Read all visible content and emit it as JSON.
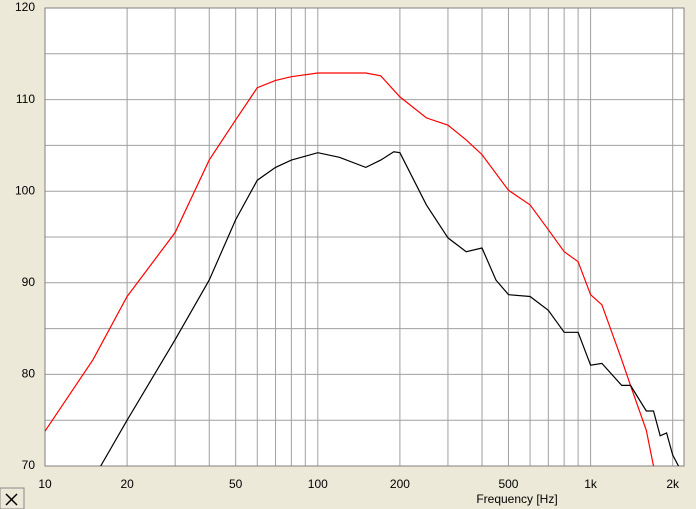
{
  "chart_data": {
    "type": "line",
    "xlabel": "Frequency [Hz]",
    "xscale": "log",
    "xlim": [
      10,
      2200
    ],
    "ylim": [
      70,
      120
    ],
    "xticks": [
      10,
      20,
      50,
      100,
      200,
      500,
      {
        "value": 1000,
        "label": "1k"
      },
      {
        "value": 2000,
        "label": "2k"
      }
    ],
    "yticks": [
      70,
      80,
      90,
      100,
      110,
      120
    ],
    "xgrid": [
      10,
      20,
      30,
      40,
      50,
      60,
      70,
      80,
      90,
      100,
      200,
      300,
      400,
      500,
      600,
      700,
      800,
      900,
      1000,
      2000
    ],
    "ygrid": [
      70,
      75,
      80,
      85,
      90,
      95,
      100,
      105,
      110,
      115,
      120
    ],
    "grid": true,
    "series": [
      {
        "color": "#ff0000",
        "x": [
          10,
          15,
          20,
          30,
          40,
          50,
          60,
          70,
          80,
          100,
          150,
          170,
          200,
          250,
          300,
          350,
          400,
          500,
          600,
          700,
          800,
          900,
          1000,
          1100,
          1300,
          1400,
          1600,
          1700
        ],
        "values": [
          73.8,
          81.6,
          88.5,
          95.5,
          103.4,
          107.8,
          111.3,
          112.1,
          112.5,
          112.9,
          112.9,
          112.6,
          110.3,
          108,
          107.2,
          105.6,
          104,
          100.1,
          98.5,
          95.8,
          93.4,
          92.3,
          88.7,
          87.6,
          81.6,
          78.8,
          73.9,
          70
        ]
      },
      {
        "color": "#000000",
        "x": [
          16,
          20,
          30,
          40,
          50,
          60,
          70,
          80,
          100,
          120,
          150,
          170,
          190,
          200,
          250,
          300,
          350,
          400,
          450,
          500,
          600,
          700,
          800,
          900,
          1000,
          1100,
          1300,
          1400,
          1600,
          1700,
          1800,
          1900,
          2000,
          2100
        ],
        "values": [
          70,
          75,
          83.8,
          90.3,
          96.9,
          101.2,
          102.6,
          103.4,
          104.2,
          103.7,
          102.6,
          103.4,
          104.3,
          104.2,
          98.5,
          94.9,
          93.4,
          93.8,
          90.3,
          88.7,
          88.5,
          87,
          84.6,
          84.6,
          81,
          81.2,
          78.8,
          78.8,
          76,
          76,
          73.3,
          73.6,
          71.2,
          70
        ]
      }
    ]
  }
}
